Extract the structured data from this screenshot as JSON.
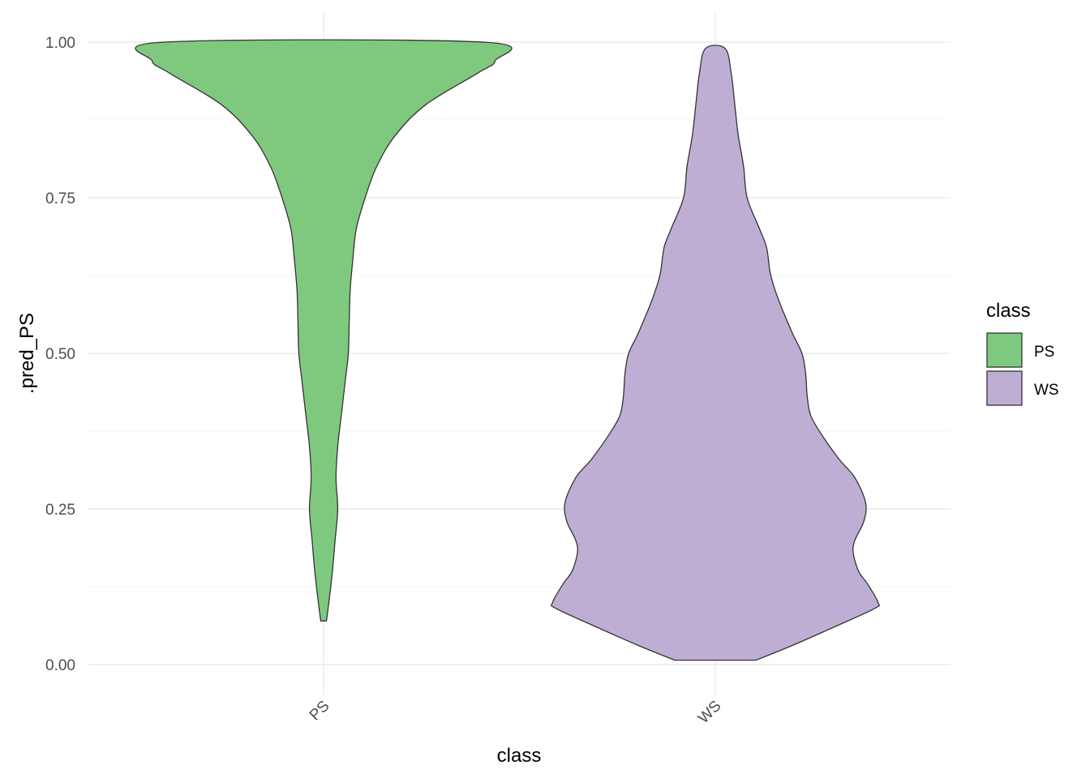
{
  "chart_data": {
    "type": "violin",
    "title": "",
    "xlabel": "class",
    "ylabel": ".pred_PS",
    "categories": [
      "PS",
      "WS"
    ],
    "ylim": [
      0,
      1
    ],
    "y_ticks": [
      "0.00",
      "0.25",
      "0.50",
      "0.75",
      "1.00"
    ],
    "y_tick_values": [
      0,
      0.25,
      0.5,
      0.75,
      1.0
    ],
    "x_tick_rotation_deg": -45,
    "grid": true,
    "legend": {
      "title": "class",
      "position": "right",
      "entries": [
        {
          "label": "PS",
          "color": "#7fc97f"
        },
        {
          "label": "WS",
          "color": "#beaed4"
        }
      ]
    },
    "series": [
      {
        "category": "PS",
        "color": "#7fc97f",
        "density_profile": [
          [
            0.07,
            0.016
          ],
          [
            0.1,
            0.03
          ],
          [
            0.15,
            0.05
          ],
          [
            0.2,
            0.065
          ],
          [
            0.25,
            0.08
          ],
          [
            0.3,
            0.07
          ],
          [
            0.35,
            0.08
          ],
          [
            0.4,
            0.1
          ],
          [
            0.45,
            0.12
          ],
          [
            0.5,
            0.14
          ],
          [
            0.55,
            0.145
          ],
          [
            0.6,
            0.15
          ],
          [
            0.65,
            0.165
          ],
          [
            0.7,
            0.185
          ],
          [
            0.75,
            0.235
          ],
          [
            0.8,
            0.3
          ],
          [
            0.85,
            0.405
          ],
          [
            0.9,
            0.58
          ],
          [
            0.95,
            0.87
          ],
          [
            0.97,
            0.97
          ],
          [
            1.0,
            0.905
          ]
        ]
      },
      {
        "category": "WS",
        "color": "#beaed4",
        "density_profile": [
          [
            0.007,
            0.23
          ],
          [
            0.03,
            0.43
          ],
          [
            0.06,
            0.67
          ],
          [
            0.09,
            0.9
          ],
          [
            0.1,
            0.92
          ],
          [
            0.13,
            0.86
          ],
          [
            0.15,
            0.81
          ],
          [
            0.18,
            0.78
          ],
          [
            0.2,
            0.79
          ],
          [
            0.23,
            0.84
          ],
          [
            0.26,
            0.85
          ],
          [
            0.3,
            0.79
          ],
          [
            0.33,
            0.7
          ],
          [
            0.37,
            0.6
          ],
          [
            0.4,
            0.54
          ],
          [
            0.43,
            0.52
          ],
          [
            0.47,
            0.51
          ],
          [
            0.5,
            0.49
          ],
          [
            0.53,
            0.44
          ],
          [
            0.57,
            0.38
          ],
          [
            0.6,
            0.34
          ],
          [
            0.63,
            0.31
          ],
          [
            0.67,
            0.29
          ],
          [
            0.7,
            0.25
          ],
          [
            0.75,
            0.18
          ],
          [
            0.8,
            0.16
          ],
          [
            0.85,
            0.13
          ],
          [
            0.9,
            0.11
          ],
          [
            0.95,
            0.09
          ],
          [
            0.99,
            0.055
          ]
        ]
      }
    ]
  }
}
